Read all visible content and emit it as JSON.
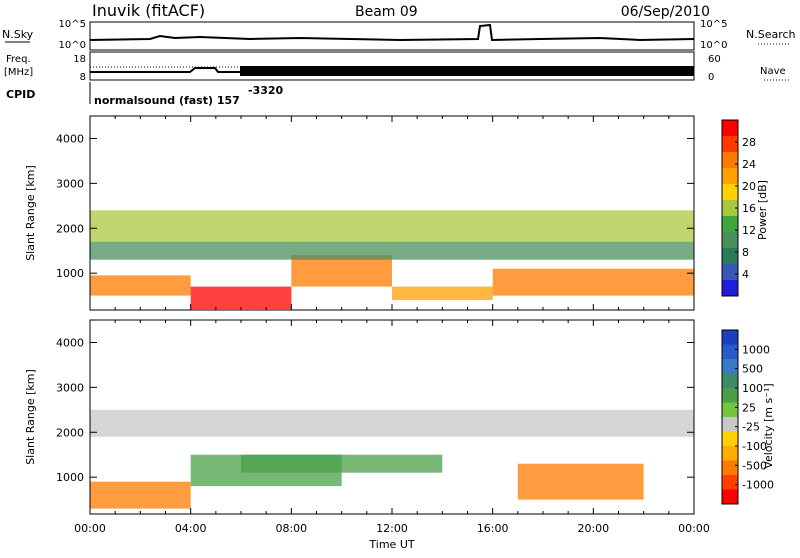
{
  "header": {
    "station": "Inuvik (fitACF)",
    "beam": "Beam 09",
    "date": "06/Sep/2010"
  },
  "panels": {
    "nsky_label": "N.Sky",
    "nsearch_label": "N.Search",
    "freq_label_1": "Freq.",
    "freq_label_2": "[MHz]",
    "nave_label": "Nave",
    "cpid_label": "CPID",
    "mode_text": "normalsound (fast) 157",
    "cpid_value": "-3320",
    "noise_ticks_left": [
      "10^5",
      "10^0"
    ],
    "noise_ticks_right": [
      "10^5",
      "10^0"
    ],
    "freq_ticks": [
      "18",
      "8"
    ],
    "nave_ticks": [
      "60",
      "0"
    ]
  },
  "colorbars": {
    "power": {
      "label": "Power [dB]",
      "ticks": [
        "28",
        "24",
        "20",
        "16",
        "12",
        "8",
        "4"
      ],
      "colors": [
        "#ff0000",
        "#ff3a00",
        "#ff7b00",
        "#ff9f00",
        "#ffd100",
        "#a8c83c",
        "#3ea63e",
        "#4a8f5b",
        "#2c7a5a",
        "#3855b8",
        "#1e1ed8"
      ]
    },
    "velocity": {
      "label": "Velocity [m s⁻¹]",
      "ticks": [
        "1000",
        "500",
        "100",
        "25",
        "-25",
        "-100",
        "-500",
        "-1000"
      ],
      "colors": [
        "#1c3fbf",
        "#2a5ac8",
        "#3a78c8",
        "#3e8a6a",
        "#4aa04a",
        "#76c43c",
        "#c8c8c8",
        "#ffd100",
        "#ffae00",
        "#ff7b00",
        "#ff4000",
        "#ff0000"
      ]
    }
  },
  "chart_data": [
    {
      "type": "heatmap",
      "title": "",
      "xlabel": "",
      "ylabel": "Slant Range [km]",
      "xlim": [
        0,
        24
      ],
      "ylim": [
        180,
        4500
      ],
      "xticks": [
        "00:00",
        "04:00",
        "08:00",
        "12:00",
        "16:00",
        "20:00",
        "00:00"
      ],
      "yticks": [
        1000,
        2000,
        3000,
        4000
      ],
      "colorbar": "Power [dB]",
      "bands": [
        {
          "t0": 0.0,
          "t1": 4.0,
          "r0": 500,
          "r1": 950,
          "value": 26
        },
        {
          "t0": 4.0,
          "t1": 8.0,
          "r0": 200,
          "r1": 700,
          "value": 30
        },
        {
          "t0": 8.0,
          "t1": 12.0,
          "r0": 700,
          "r1": 1400,
          "value": 26
        },
        {
          "t0": 12.0,
          "t1": 16.0,
          "r0": 400,
          "r1": 700,
          "value": 22
        },
        {
          "t0": 16.0,
          "t1": 24.0,
          "r0": 500,
          "r1": 1100,
          "value": 26
        },
        {
          "t0": 0.0,
          "t1": 24.0,
          "r0": 1700,
          "r1": 2400,
          "value": 15
        },
        {
          "t0": 0.0,
          "t1": 24.0,
          "r0": 1300,
          "r1": 1700,
          "value": 10
        }
      ]
    },
    {
      "type": "heatmap",
      "title": "",
      "xlabel": "Time UT",
      "ylabel": "Slant Range [km]",
      "xlim": [
        0,
        24
      ],
      "ylim": [
        180,
        4500
      ],
      "xticks": [
        "00:00",
        "04:00",
        "08:00",
        "12:00",
        "16:00",
        "20:00",
        "00:00"
      ],
      "yticks": [
        1000,
        2000,
        3000,
        4000
      ],
      "colorbar": "Velocity [m s⁻¹]",
      "bands": [
        {
          "t0": 0.0,
          "t1": 4.0,
          "r0": 300,
          "r1": 900,
          "value": -200
        },
        {
          "t0": 4.0,
          "t1": 10.0,
          "r0": 800,
          "r1": 1500,
          "value": 150
        },
        {
          "t0": 6.0,
          "t1": 14.0,
          "r0": 1100,
          "r1": 1500,
          "value": 250
        },
        {
          "t0": 17.0,
          "t1": 22.0,
          "r0": 500,
          "r1": 1300,
          "value": -300
        },
        {
          "t0": 0.0,
          "t1": 24.0,
          "r0": 1900,
          "r1": 2500,
          "value": 0
        }
      ]
    }
  ]
}
